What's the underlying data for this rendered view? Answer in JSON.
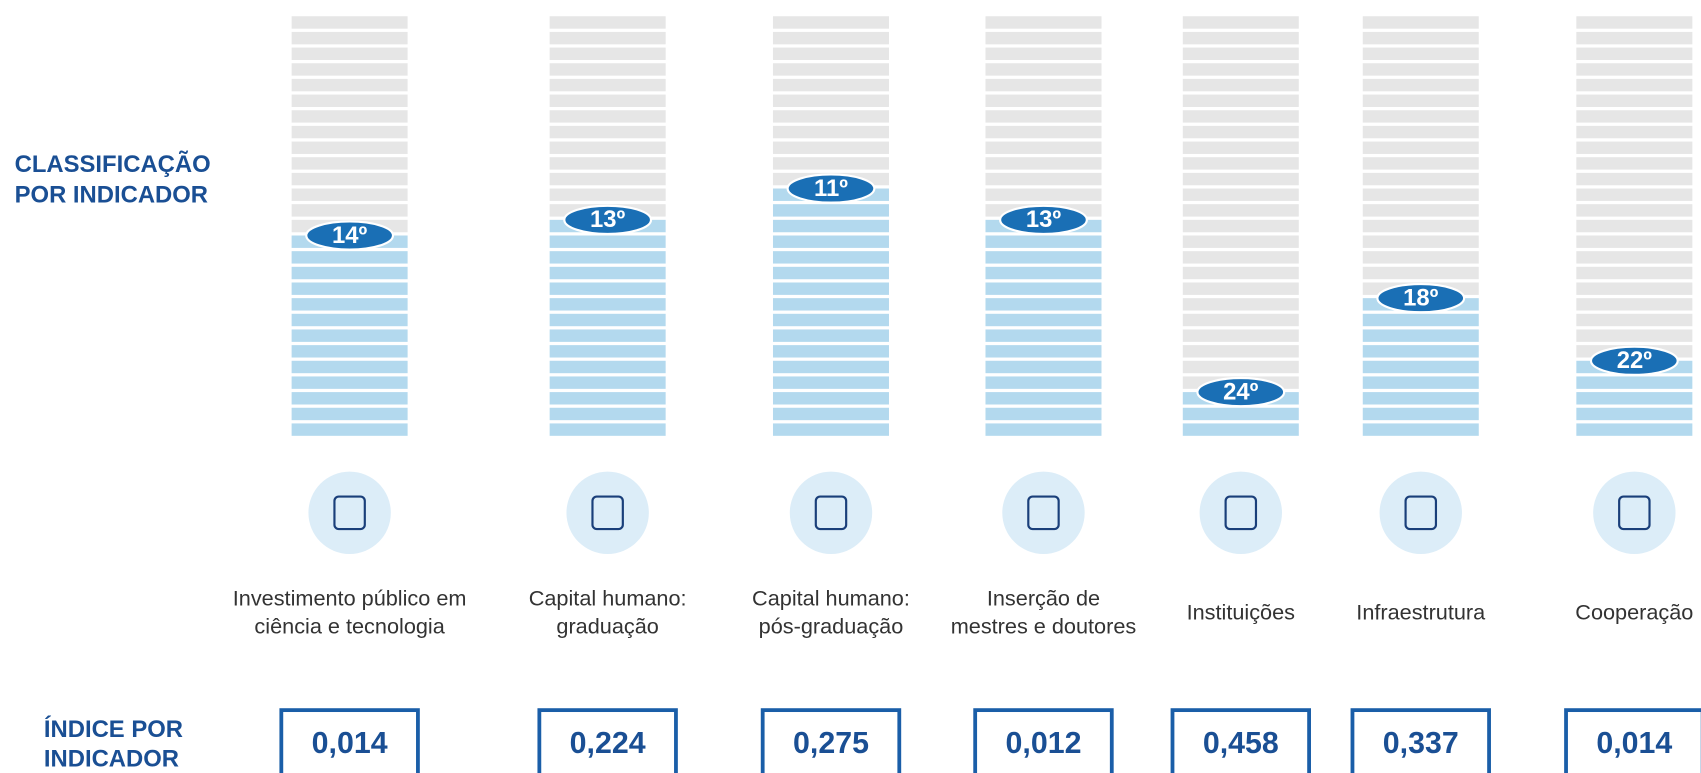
{
  "chart_data": {
    "type": "bar",
    "rank_label": [
      "CLASSIFICAÇÃO",
      "POR INDICADOR"
    ],
    "index_label": [
      "ÍNDICE POR",
      "INDICADOR"
    ],
    "categories": [
      [
        "Investimento público em",
        "ciência e tecnologia"
      ],
      [
        "Capital humano:",
        "graduação"
      ],
      [
        "Capital humano:",
        "pós-graduação"
      ],
      [
        "Inserção de",
        "mestres e doutores"
      ],
      [
        "Instituições"
      ],
      [
        "Infraestrutura"
      ],
      [
        "Cooperação"
      ]
    ],
    "values": [
      14,
      13,
      11,
      13,
      24,
      18,
      22
    ],
    "value_labels": [
      "14º",
      "13º",
      "11º",
      "13º",
      "24º",
      "18º",
      "22º"
    ],
    "ylim": [
      27,
      0
    ],
    "index_values": [
      0.014,
      0.224,
      0.275,
      0.012,
      0.458,
      0.337,
      0.014
    ],
    "index_labels": [
      "0,014",
      "0,224",
      "0,275",
      "0,012",
      "0,458",
      "0,337",
      "0,014"
    ],
    "filled_color": "#b3d9ee",
    "empty_color": "#e6e6e6",
    "badge_color": "#1a6fb5"
  }
}
